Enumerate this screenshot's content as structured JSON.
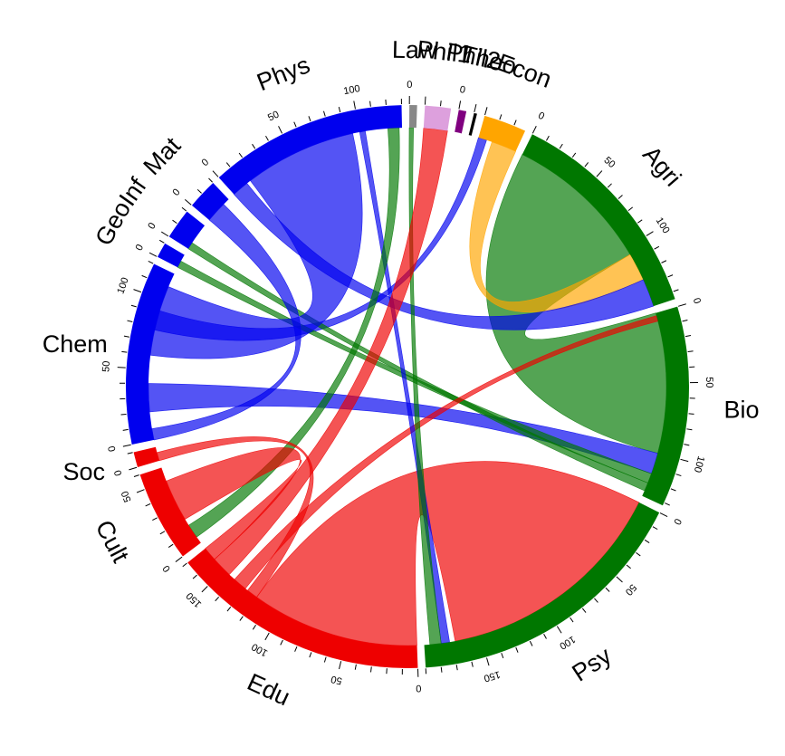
{
  "colors": {
    "blue": "#0000ee",
    "green": "#007700",
    "red": "#ee0000",
    "grey": "#888888",
    "pink": "#dda0dd",
    "purple": "#800080",
    "black": "#000000",
    "orange": "#ffa500"
  },
  "segments": [
    {
      "id": "law",
      "label": "Law",
      "value": 5,
      "color": "grey",
      "ticks": [
        "0"
      ]
    },
    {
      "id": "phil1",
      "label": "Phil1",
      "value": 17,
      "color": "pink",
      "ticks": []
    },
    {
      "id": "phil2",
      "label": "Phil2",
      "value": 5,
      "color": "purple",
      "ticks": [
        "0"
      ]
    },
    {
      "id": "theo",
      "label": "Theo",
      "value": 2,
      "color": "black",
      "ticks": []
    },
    {
      "id": "econ",
      "label": "Econ",
      "value": 28,
      "color": "orange",
      "ticks": []
    },
    {
      "id": "agri",
      "label": "Agri",
      "value": 145,
      "color": "green",
      "ticks": [
        "0",
        "50",
        "100"
      ]
    },
    {
      "id": "bio",
      "label": "Bio",
      "value": 132,
      "color": "green",
      "ticks": [
        "0",
        "50",
        "100"
      ]
    },
    {
      "id": "psy",
      "label": "Psy",
      "value": 190,
      "color": "green",
      "ticks": [
        "0",
        "50",
        "100",
        "150"
      ]
    },
    {
      "id": "edu",
      "label": "Edu",
      "value": 170,
      "color": "red",
      "ticks": [
        "0",
        "50",
        "100",
        "150"
      ]
    },
    {
      "id": "cult",
      "label": "Cult",
      "value": 60,
      "color": "red",
      "ticks": [
        "0",
        "50"
      ]
    },
    {
      "id": "soc",
      "label": "Soc",
      "value": 10,
      "color": "red",
      "ticks": [
        "0"
      ]
    },
    {
      "id": "chem",
      "label": "Chem",
      "value": 120,
      "color": "blue",
      "ticks": [
        "0",
        "50",
        "100"
      ]
    },
    {
      "id": "geo",
      "label": "Geo",
      "value": 10,
      "color": "blue",
      "ticks": [
        "0"
      ]
    },
    {
      "id": "inf",
      "label": "Inf",
      "value": 20,
      "color": "blue",
      "ticks": [
        "0"
      ]
    },
    {
      "id": "mat",
      "label": "Mat",
      "value": 20,
      "color": "blue",
      "ticks": [
        "0"
      ]
    },
    {
      "id": "phys",
      "label": "Phys",
      "value": 130,
      "color": "blue",
      "ticks": [
        "0",
        "50",
        "100"
      ]
    }
  ],
  "chords": [
    {
      "from": "agri",
      "from_range": [
        0,
        105
      ],
      "to": "bio",
      "to_range": [
        0,
        100
      ],
      "color": "green"
    },
    {
      "from": "agri",
      "from_range": [
        105,
        125
      ],
      "to": "econ",
      "to_range": [
        10,
        28
      ],
      "color": "orange"
    },
    {
      "from": "agri",
      "from_range": [
        125,
        145
      ],
      "to": "phys",
      "to_range": [
        0,
        12
      ],
      "color": "blue"
    },
    {
      "from": "econ",
      "from_range": [
        0,
        6
      ],
      "to": "chem",
      "to_range": [
        78,
        92
      ],
      "color": "blue"
    },
    {
      "from": "bio",
      "from_range": [
        100,
        115
      ],
      "to": "chem",
      "to_range": [
        20,
        40
      ],
      "color": "blue"
    },
    {
      "from": "bio",
      "from_range": [
        115,
        122
      ],
      "to": "geo",
      "to_range": [
        0,
        5
      ],
      "color": "green"
    },
    {
      "from": "bio",
      "from_range": [
        122,
        128
      ],
      "to": "inf",
      "to_range": [
        0,
        5
      ],
      "color": "green"
    },
    {
      "from": "bio",
      "from_range": [
        2,
        6
      ],
      "to": "edu",
      "to_range": [
        130,
        140
      ],
      "color": "red"
    },
    {
      "from": "psy",
      "from_range": [
        0,
        168
      ],
      "to": "edu",
      "to_range": [
        0,
        120
      ],
      "color": "red"
    },
    {
      "from": "psy",
      "from_range": [
        172,
        178
      ],
      "to": "phys",
      "to_range": [
        100,
        104
      ],
      "color": "blue"
    },
    {
      "from": "psy",
      "from_range": [
        178,
        186
      ],
      "to": "law",
      "to_range": [
        0,
        3
      ],
      "color": "green"
    },
    {
      "from": "phys",
      "from_range": [
        15,
        95
      ],
      "to": "chem",
      "to_range": [
        60,
        110
      ],
      "color": "blue"
    },
    {
      "from": "phys",
      "from_range": [
        120,
        128
      ],
      "to": "cult",
      "to_range": [
        5,
        15
      ],
      "color": "green"
    },
    {
      "from": "phil1",
      "from_range": [
        0,
        17
      ],
      "to": "edu",
      "to_range": [
        145,
        160
      ],
      "color": "red"
    },
    {
      "from": "mat",
      "from_range": [
        0,
        15
      ],
      "to": "chem",
      "to_range": [
        0,
        8
      ],
      "color": "blue"
    },
    {
      "from": "cult",
      "from_range": [
        20,
        50
      ],
      "to": "edu",
      "to_range": [
        160,
        170
      ],
      "color": "red"
    },
    {
      "from": "soc",
      "from_range": [
        0,
        6
      ],
      "to": "edu",
      "to_range": [
        120,
        128
      ],
      "color": "red"
    }
  ]
}
